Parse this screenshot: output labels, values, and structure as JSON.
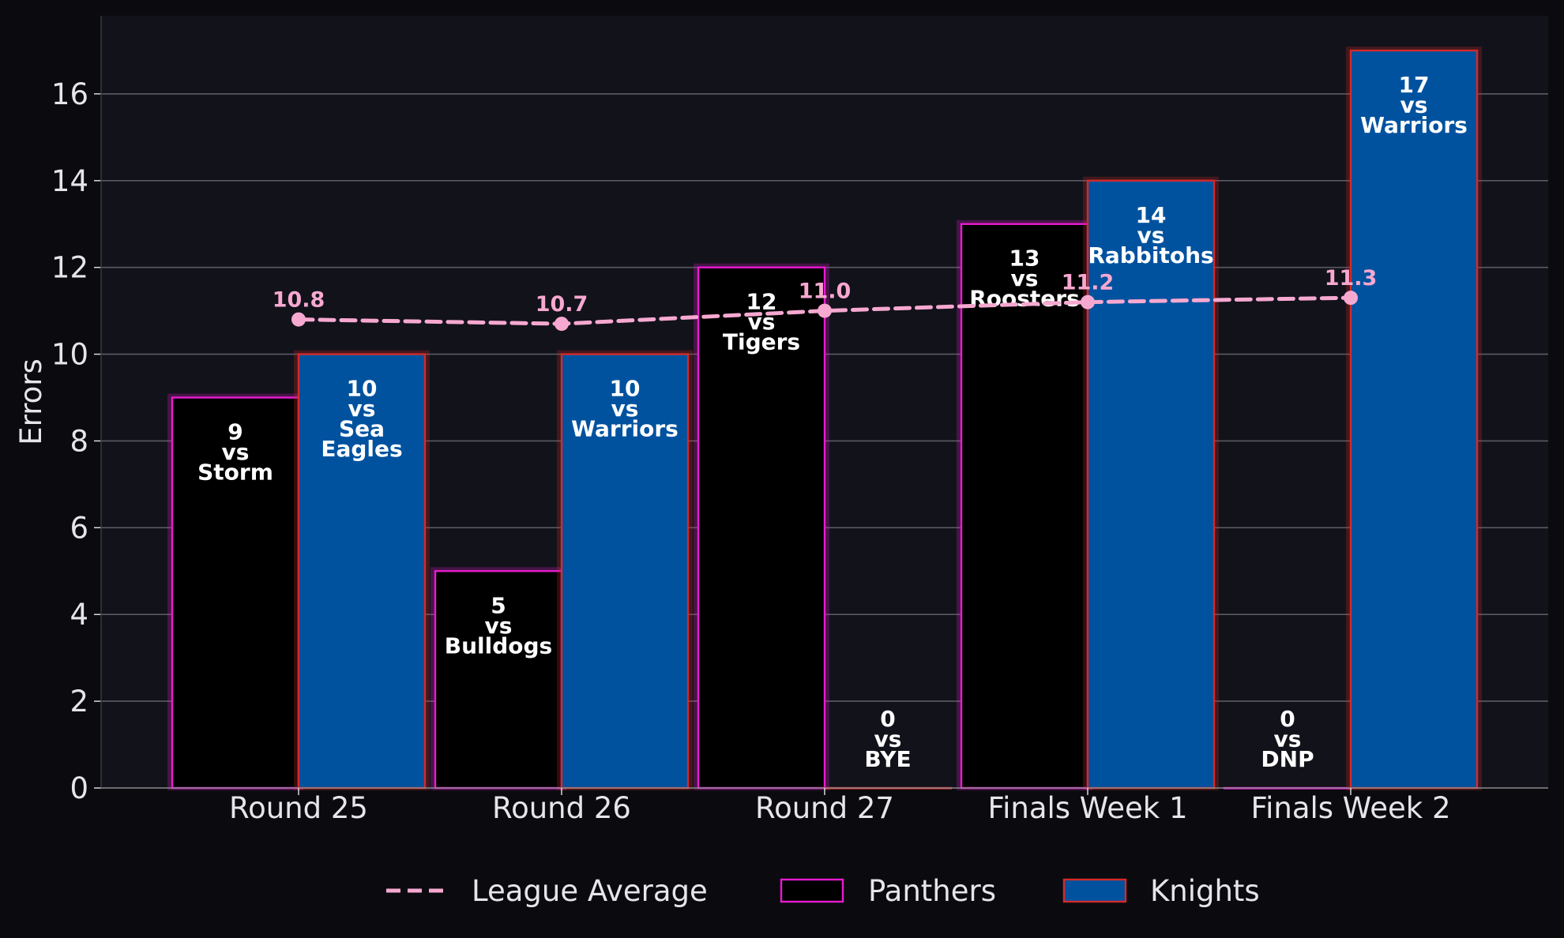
{
  "chart_data": {
    "type": "bar",
    "ylabel": "Errors",
    "xlabel": "",
    "title": "",
    "ylim": [
      0,
      17.8
    ],
    "yticks": [
      0,
      2,
      4,
      6,
      8,
      10,
      12,
      14,
      16
    ],
    "grid": "horizontal",
    "categories": [
      "Round 25",
      "Round 26",
      "Round 27",
      "Finals Week 1",
      "Finals Week 2"
    ],
    "series": [
      {
        "name": "Panthers",
        "kind": "bar",
        "fill": "#000000",
        "stroke": "#e81cd0",
        "values": [
          9,
          5,
          12,
          13,
          0
        ],
        "labels": [
          [
            "9",
            "vs",
            "Storm"
          ],
          [
            "5",
            "vs",
            "Bulldogs"
          ],
          [
            "12",
            "vs",
            "Tigers"
          ],
          [
            "13",
            "vs",
            "Roosters"
          ],
          [
            "0",
            "vs",
            "DNP"
          ]
        ]
      },
      {
        "name": "Knights",
        "kind": "bar",
        "fill": "#00529f",
        "stroke": "#d42a2a",
        "values": [
          10,
          10,
          0,
          14,
          17
        ],
        "labels": [
          [
            "10",
            "vs",
            "Sea",
            "Eagles"
          ],
          [
            "10",
            "vs",
            "Warriors"
          ],
          [
            "0",
            "vs",
            "BYE"
          ],
          [
            "14",
            "vs",
            "Rabbitohs"
          ],
          [
            "17",
            "vs",
            "Warriors"
          ]
        ]
      }
    ],
    "league_average": {
      "name": "League Average",
      "kind": "line",
      "style": "dashed",
      "color": "#f7a8d0",
      "values": [
        10.8,
        10.7,
        11.0,
        11.2,
        11.3
      ],
      "labels": [
        "10.8",
        "10.7",
        "11.0",
        "11.2",
        "11.3"
      ]
    },
    "legend": {
      "placement": "bottom-center",
      "entries": [
        "League Average",
        "Panthers",
        "Knights"
      ]
    },
    "colors": {
      "background": "#0b0b0f",
      "plot_background": "#12121a",
      "grid": "#5a5a62",
      "text": "#e6e6ea"
    }
  }
}
